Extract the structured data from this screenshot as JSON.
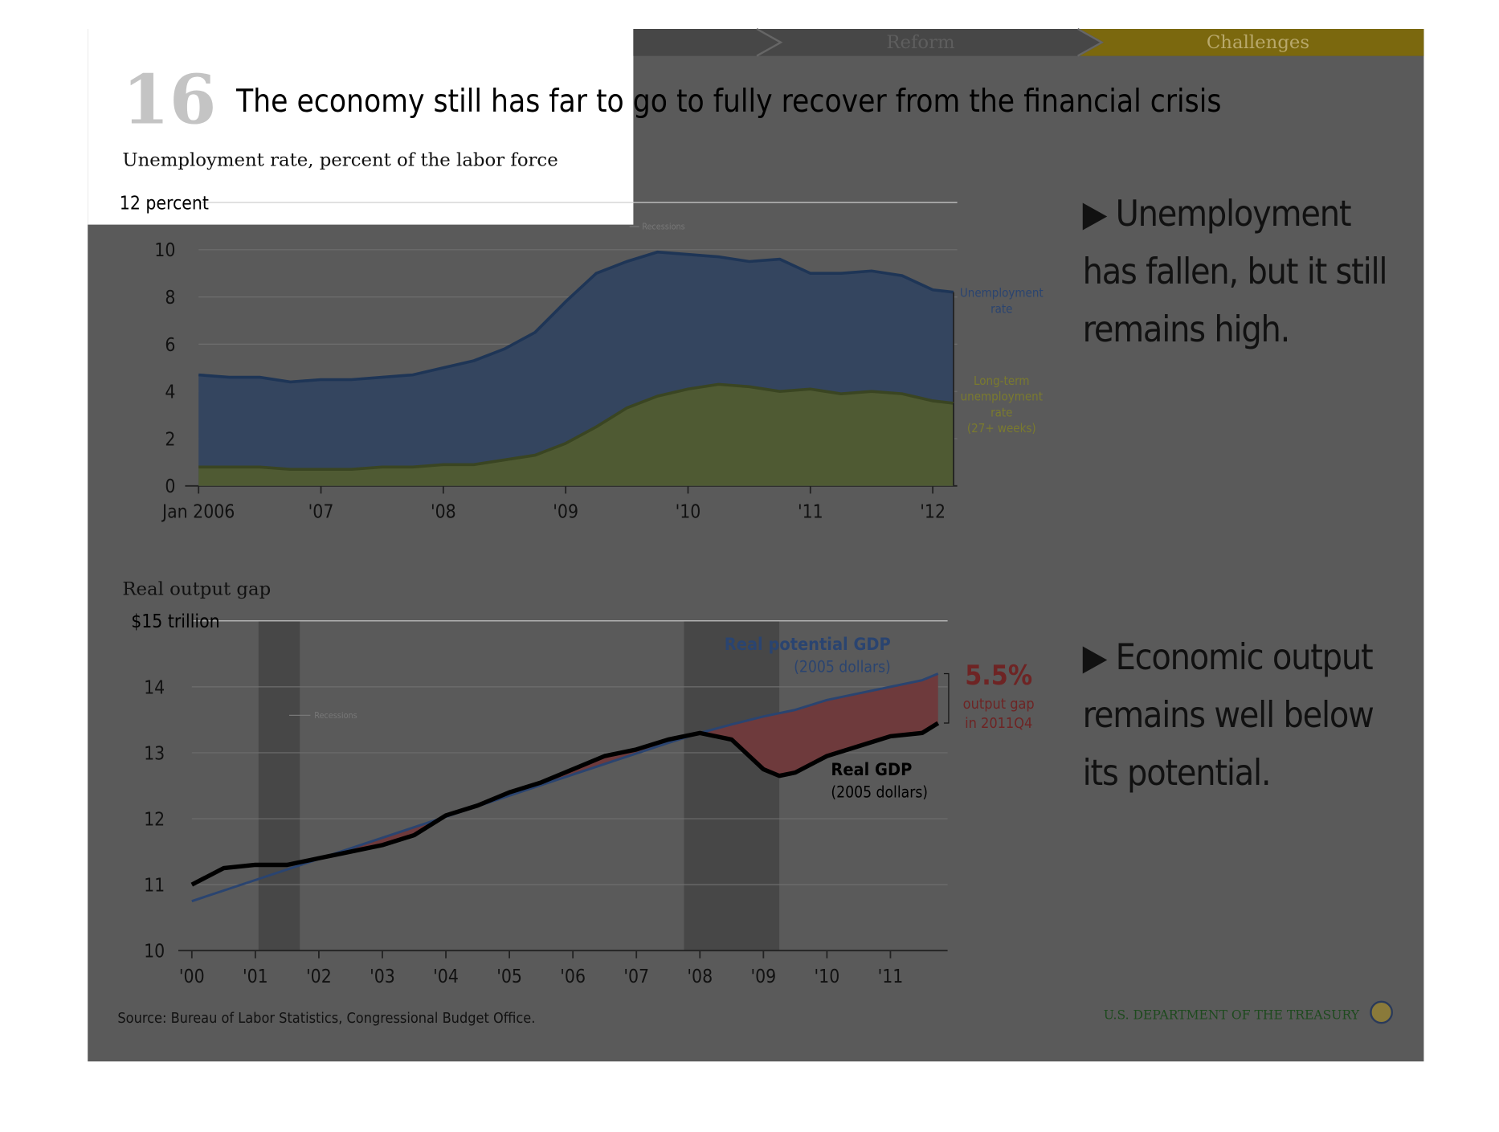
{
  "nav": [
    "Reform",
    "Challenges"
  ],
  "slide_number": "16",
  "title": "The economy still has far to go to fully recover from the financial crisis",
  "bullets": [
    "▶ Unemployment has fallen, but it still remains high.",
    "▶ Economic output remains well below its potential."
  ],
  "source": "Source: Bureau of Labor Statistics, Congressional Budget Office.",
  "footer": "U.S. DEPARTMENT OF THE TREASURY",
  "chart_data": [
    {
      "type": "area",
      "title": "Unemployment rate, percent of the labor force",
      "x": [
        2006,
        2006.25,
        2006.5,
        2006.75,
        2007,
        2007.25,
        2007.5,
        2007.75,
        2008,
        2008.25,
        2008.5,
        2008.75,
        2009,
        2009.25,
        2009.5,
        2009.75,
        2010,
        2010.25,
        2010.5,
        2010.75,
        2011,
        2011.25,
        2011.5,
        2011.75,
        2012,
        2012.17
      ],
      "series": [
        {
          "name": "Unemployment rate",
          "color": "#34455f",
          "line": "#1e3556",
          "values": [
            4.7,
            4.6,
            4.6,
            4.4,
            4.5,
            4.5,
            4.6,
            4.7,
            5.0,
            5.3,
            5.8,
            6.5,
            7.8,
            9.0,
            9.5,
            9.9,
            9.8,
            9.7,
            9.5,
            9.6,
            9.0,
            9.0,
            9.1,
            8.9,
            8.3,
            8.2
          ]
        },
        {
          "name": "Long-term unemployment rate (27+ weeks)",
          "color": "#4f5a33",
          "line": "#3a4522",
          "values": [
            0.8,
            0.8,
            0.8,
            0.7,
            0.7,
            0.7,
            0.8,
            0.8,
            0.9,
            0.9,
            1.1,
            1.3,
            1.8,
            2.5,
            3.3,
            3.8,
            4.1,
            4.3,
            4.2,
            4.0,
            4.1,
            3.9,
            4.0,
            3.9,
            3.6,
            3.5
          ]
        }
      ],
      "xlim": [
        2006,
        2012.2
      ],
      "xticks": [
        {
          "value": 2006,
          "label": "Jan 2006"
        },
        {
          "value": 2007,
          "label": "'07"
        },
        {
          "value": 2008,
          "label": "'08"
        },
        {
          "value": 2009,
          "label": "'09"
        },
        {
          "value": 2010,
          "label": "'10"
        },
        {
          "value": 2011,
          "label": "'11"
        },
        {
          "value": 2012,
          "label": "'12"
        }
      ],
      "ylim": [
        0,
        12
      ],
      "yticks": [
        0,
        2,
        4,
        6,
        8,
        10,
        {
          "value": 12,
          "label": "12 percent"
        }
      ],
      "grid": true,
      "annotations": [
        "Recessions"
      ]
    },
    {
      "type": "line",
      "title": "Real output gap",
      "x": [
        2000,
        2000.5,
        2001,
        2001.5,
        2002,
        2002.5,
        2003,
        2003.5,
        2004,
        2004.5,
        2005,
        2005.5,
        2006,
        2006.5,
        2007,
        2007.5,
        2008,
        2008.5,
        2009,
        2009.25,
        2009.5,
        2010,
        2010.5,
        2011,
        2011.5,
        2011.75
      ],
      "series": [
        {
          "name": "Real potential GDP",
          "color": "#2a4470",
          "values": [
            10.75,
            10.91,
            11.07,
            11.23,
            11.39,
            11.55,
            11.71,
            11.87,
            12.03,
            12.19,
            12.35,
            12.51,
            12.67,
            12.83,
            12.99,
            13.15,
            13.3,
            13.43,
            13.55,
            13.6,
            13.65,
            13.8,
            13.9,
            14.0,
            14.1,
            14.2
          ]
        },
        {
          "name": "Real GDP",
          "color": "#000000",
          "values": [
            11.0,
            11.25,
            11.3,
            11.3,
            11.4,
            11.5,
            11.6,
            11.75,
            12.05,
            12.2,
            12.4,
            12.55,
            12.75,
            12.95,
            13.05,
            13.2,
            13.3,
            13.2,
            12.75,
            12.65,
            12.7,
            12.95,
            13.1,
            13.25,
            13.3,
            13.45
          ]
        }
      ],
      "gap_color": "#6e3a3c",
      "recessions": [
        [
          2001.05,
          2001.7
        ],
        [
          2007.75,
          2009.25
        ]
      ],
      "recession_color": "#474747",
      "xlim": [
        2000,
        2011.9
      ],
      "xticks": [
        {
          "value": 2000,
          "label": "'00"
        },
        {
          "value": 2001,
          "label": "'01"
        },
        {
          "value": 2002,
          "label": "'02"
        },
        {
          "value": 2003,
          "label": "'03"
        },
        {
          "value": 2004,
          "label": "'04"
        },
        {
          "value": 2005,
          "label": "'05"
        },
        {
          "value": 2006,
          "label": "'06"
        },
        {
          "value": 2007,
          "label": "'07"
        },
        {
          "value": 2008,
          "label": "'08"
        },
        {
          "value": 2009,
          "label": "'09"
        },
        {
          "value": 2010,
          "label": "'10"
        },
        {
          "value": 2011,
          "label": "'11"
        }
      ],
      "ylim": [
        10,
        15
      ],
      "yticks": [
        10,
        11,
        12,
        13,
        14,
        {
          "value": 15,
          "label": "$15 trillion"
        }
      ],
      "grid": true,
      "annotations": [
        "Recessions",
        "(2005 dollars)",
        "(2005 dollars)",
        "5.5%",
        "output gap in 2011Q4"
      ]
    }
  ]
}
